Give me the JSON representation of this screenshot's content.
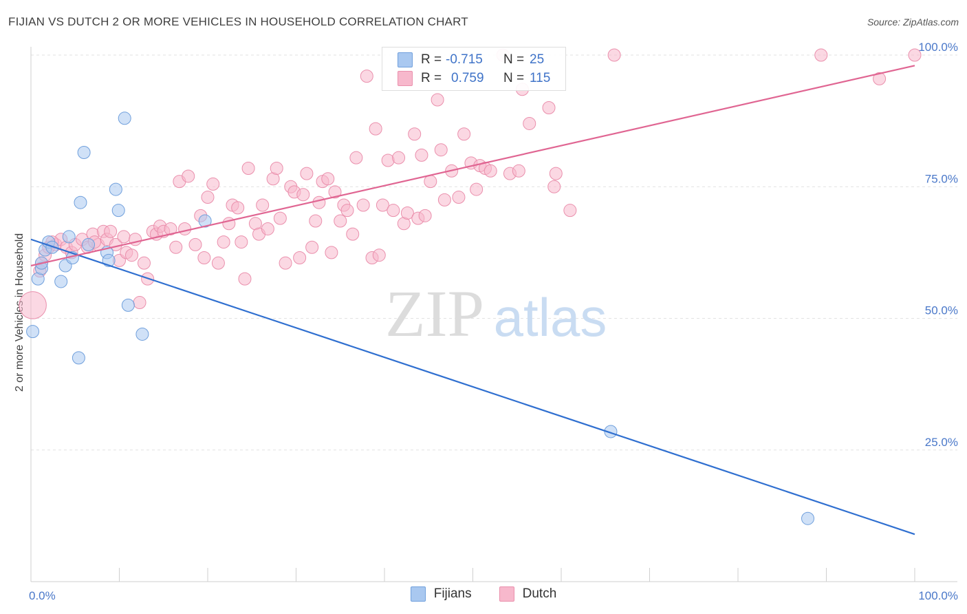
{
  "header": {
    "title": "FIJIAN VS DUTCH 2 OR MORE VEHICLES IN HOUSEHOLD CORRELATION CHART",
    "source": "Source: ZipAtlas.com"
  },
  "watermark": {
    "zip": "ZIP",
    "atlas": "atlas"
  },
  "colors": {
    "fijians_fill": "#a9c8f0",
    "fijians_stroke": "#6f9fdc",
    "fijians_line": "#2f6fd0",
    "dutch_fill": "#f7b8cc",
    "dutch_stroke": "#ea8fac",
    "dutch_line": "#e06592",
    "tick_text": "#4a78c9"
  },
  "legend": {
    "rows": [
      {
        "r_label": "R =",
        "r_value": "-0.715",
        "n_label": "N =",
        "n_value": "25"
      },
      {
        "r_label": "R =",
        "r_value": "0.759",
        "n_label": "N =",
        "n_value": "115"
      }
    ]
  },
  "bottom_legend": {
    "fijians": "Fijians",
    "dutch": "Dutch"
  },
  "chart_data": {
    "type": "scatter",
    "title": "FIJIAN VS DUTCH 2 OR MORE VEHICLES IN HOUSEHOLD CORRELATION CHART",
    "xlabel": "",
    "ylabel": "2 or more Vehicles in Household",
    "xlim": [
      0,
      100
    ],
    "ylim": [
      0,
      100
    ],
    "x_tick_labels": [
      "0.0%",
      "100.0%"
    ],
    "y_ticks": [
      25,
      50,
      75,
      100
    ],
    "y_tick_labels": [
      "25.0%",
      "50.0%",
      "75.0%",
      "100.0%"
    ],
    "grid": true,
    "legend_position": "top-center",
    "series": [
      {
        "name": "Fijians",
        "r": -0.715,
        "n": 25,
        "trend": [
          [
            0,
            65.0
          ],
          [
            100,
            9.0
          ]
        ],
        "points": [
          [
            0.2,
            47.5,
            1
          ],
          [
            0.8,
            57.5,
            1
          ],
          [
            1.2,
            59.5,
            1
          ],
          [
            1.6,
            63.0,
            1
          ],
          [
            2.0,
            64.5,
            1
          ],
          [
            2.4,
            63.5,
            1
          ],
          [
            3.4,
            57.0,
            1
          ],
          [
            3.9,
            60.0,
            1
          ],
          [
            4.3,
            65.5,
            1
          ],
          [
            4.7,
            61.5,
            1
          ],
          [
            5.4,
            42.5,
            1
          ],
          [
            5.6,
            72.0,
            1
          ],
          [
            6.0,
            81.5,
            1
          ],
          [
            6.5,
            64.0,
            1
          ],
          [
            8.6,
            62.5,
            1
          ],
          [
            8.8,
            61.0,
            1
          ],
          [
            9.6,
            74.5,
            1
          ],
          [
            9.9,
            70.5,
            1
          ],
          [
            10.6,
            88.0,
            1
          ],
          [
            11.0,
            52.5,
            1
          ],
          [
            12.6,
            47.0,
            1
          ],
          [
            19.7,
            68.5,
            1
          ],
          [
            65.6,
            28.5,
            1
          ],
          [
            87.9,
            12.0,
            1
          ],
          [
            1.2,
            60.5,
            1
          ]
        ]
      },
      {
        "name": "Dutch",
        "r": 0.759,
        "n": 115,
        "trend": [
          [
            0,
            60.0
          ],
          [
            100,
            98.0
          ]
        ],
        "points": [
          [
            0.2,
            52.5,
            2.2
          ],
          [
            1.0,
            59.0,
            1
          ],
          [
            1.2,
            60.5,
            1
          ],
          [
            1.6,
            62.0,
            1
          ],
          [
            2.0,
            63.5,
            1
          ],
          [
            2.8,
            64.0,
            1
          ],
          [
            3.4,
            65.0,
            1
          ],
          [
            4.0,
            63.5,
            1
          ],
          [
            4.6,
            62.5,
            1
          ],
          [
            5.0,
            64.0,
            1
          ],
          [
            5.8,
            65.0,
            1
          ],
          [
            6.4,
            63.5,
            1
          ],
          [
            7.0,
            66.0,
            1
          ],
          [
            7.6,
            64.0,
            1
          ],
          [
            8.2,
            66.5,
            1
          ],
          [
            8.6,
            65.0,
            1
          ],
          [
            9.0,
            66.5,
            1
          ],
          [
            9.6,
            64.0,
            1
          ],
          [
            10.0,
            61.0,
            1
          ],
          [
            10.5,
            65.5,
            1
          ],
          [
            10.8,
            62.5,
            1
          ],
          [
            11.4,
            62.0,
            1
          ],
          [
            11.8,
            65.0,
            1
          ],
          [
            12.3,
            53.0,
            1
          ],
          [
            12.8,
            60.5,
            1
          ],
          [
            13.2,
            57.5,
            1
          ],
          [
            13.8,
            66.5,
            1
          ],
          [
            14.2,
            66.0,
            1
          ],
          [
            14.6,
            67.5,
            1
          ],
          [
            15.0,
            66.5,
            1
          ],
          [
            15.8,
            67.0,
            1
          ],
          [
            16.4,
            63.5,
            1
          ],
          [
            16.8,
            76.0,
            1
          ],
          [
            17.4,
            67.0,
            1
          ],
          [
            17.8,
            77.0,
            1
          ],
          [
            18.6,
            64.0,
            1
          ],
          [
            19.2,
            69.5,
            1
          ],
          [
            19.6,
            61.5,
            1
          ],
          [
            20.0,
            73.0,
            1
          ],
          [
            20.6,
            75.5,
            1
          ],
          [
            21.2,
            60.5,
            1
          ],
          [
            21.8,
            64.5,
            1
          ],
          [
            22.4,
            68.0,
            1
          ],
          [
            22.8,
            71.5,
            1
          ],
          [
            23.4,
            71.0,
            1
          ],
          [
            23.8,
            64.5,
            1
          ],
          [
            24.2,
            57.5,
            1
          ],
          [
            24.6,
            78.5,
            1
          ],
          [
            25.4,
            68.0,
            1
          ],
          [
            25.8,
            66.0,
            1
          ],
          [
            26.2,
            71.5,
            1
          ],
          [
            26.8,
            67.0,
            1
          ],
          [
            27.4,
            76.5,
            1
          ],
          [
            27.8,
            78.5,
            1
          ],
          [
            28.2,
            69.0,
            1
          ],
          [
            28.8,
            60.5,
            1
          ],
          [
            29.4,
            75.0,
            1
          ],
          [
            29.8,
            74.0,
            1
          ],
          [
            30.4,
            61.5,
            1
          ],
          [
            30.8,
            73.5,
            1
          ],
          [
            31.2,
            77.5,
            1
          ],
          [
            31.8,
            63.5,
            1
          ],
          [
            32.2,
            68.5,
            1
          ],
          [
            32.6,
            72.0,
            1
          ],
          [
            33.0,
            76.0,
            1
          ],
          [
            33.6,
            76.5,
            1
          ],
          [
            34.0,
            62.5,
            1
          ],
          [
            34.4,
            74.0,
            1
          ],
          [
            35.0,
            68.5,
            1
          ],
          [
            35.4,
            71.5,
            1
          ],
          [
            35.8,
            70.5,
            1
          ],
          [
            36.4,
            66.0,
            1
          ],
          [
            36.8,
            80.5,
            1
          ],
          [
            37.6,
            71.5,
            1
          ],
          [
            38.0,
            96.0,
            1
          ],
          [
            38.6,
            61.5,
            1
          ],
          [
            39.0,
            86.0,
            1
          ],
          [
            39.4,
            62.0,
            1
          ],
          [
            39.8,
            71.5,
            1
          ],
          [
            40.4,
            80.0,
            1
          ],
          [
            41.0,
            70.5,
            1
          ],
          [
            41.6,
            80.5,
            1
          ],
          [
            42.2,
            68.0,
            1
          ],
          [
            42.6,
            70.0,
            1
          ],
          [
            43.4,
            85.0,
            1
          ],
          [
            43.8,
            69.0,
            1
          ],
          [
            44.2,
            81.0,
            1
          ],
          [
            44.6,
            69.5,
            1
          ],
          [
            45.2,
            76.0,
            1
          ],
          [
            46.0,
            91.5,
            1
          ],
          [
            46.4,
            82.0,
            1
          ],
          [
            46.8,
            72.5,
            1
          ],
          [
            47.6,
            78.0,
            1
          ],
          [
            48.4,
            73.0,
            1
          ],
          [
            49.0,
            85.0,
            1
          ],
          [
            49.8,
            79.5,
            1
          ],
          [
            50.4,
            74.5,
            1
          ],
          [
            50.8,
            79.0,
            1
          ],
          [
            51.4,
            78.5,
            1
          ],
          [
            52.0,
            78.0,
            1
          ],
          [
            53.4,
            100.0,
            1
          ],
          [
            54.2,
            77.5,
            1
          ],
          [
            55.2,
            78.0,
            1
          ],
          [
            55.6,
            93.5,
            1
          ],
          [
            56.4,
            87.0,
            1
          ],
          [
            58.6,
            90.0,
            1
          ],
          [
            59.2,
            75.0,
            1
          ],
          [
            59.4,
            77.5,
            1
          ],
          [
            61.0,
            70.5,
            1
          ],
          [
            66.0,
            100.0,
            1
          ],
          [
            89.4,
            100.0,
            1
          ],
          [
            96.0,
            95.5,
            1
          ],
          [
            100.0,
            100.0,
            1
          ],
          [
            2.4,
            64.5,
            1
          ],
          [
            7.2,
            64.5,
            1
          ]
        ]
      }
    ]
  }
}
